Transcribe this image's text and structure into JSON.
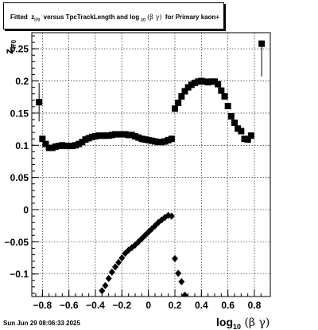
{
  "title": {
    "prefix": "Fitted",
    "z": "z",
    "z_sub": "I70",
    "middle": "versus TpcTrackLength and log",
    "log_sub": "10",
    "greek": "(β γ)",
    "suffix": "for Primary kaon+"
  },
  "date_stamp": "Sun Jun 29 08:06:33 2025",
  "chart_data": {
    "type": "scatter",
    "title": "Fitted z_I70 versus TpcTrackLength and log10(β γ) for Primary kaon+",
    "xlabel": "log10(β γ)",
    "ylabel": "z_I70",
    "xlim": [
      -0.88,
      0.92
    ],
    "ylim": [
      -0.135,
      0.275
    ],
    "grid": true,
    "x_ticks": [
      -0.8,
      -0.6,
      -0.4,
      -0.2,
      0,
      0.2,
      0.4,
      0.6,
      0.8
    ],
    "x_tick_labels": [
      "−0.8",
      "−0.6",
      "−0.4",
      "−0.2",
      "0",
      "0.2",
      "0.4",
      "0.6",
      "0.8"
    ],
    "y_ticks": [
      -0.1,
      -0.05,
      0,
      0.05,
      0.1,
      0.15,
      0.2,
      0.25
    ],
    "y_tick_labels": [
      "−0.1",
      "−0.05",
      "0",
      "0.05",
      "0.1",
      "0.15",
      "0.2",
      "0.25"
    ],
    "series": [
      {
        "marker": "square",
        "points": [
          {
            "x": -0.825,
            "y": 0.167,
            "err": 0.03
          },
          {
            "x": -0.8,
            "y": 0.11
          },
          {
            "x": -0.775,
            "y": 0.102
          },
          {
            "x": -0.75,
            "y": 0.096
          },
          {
            "x": -0.725,
            "y": 0.096
          },
          {
            "x": -0.7,
            "y": 0.098
          },
          {
            "x": -0.675,
            "y": 0.099
          },
          {
            "x": -0.65,
            "y": 0.1
          },
          {
            "x": -0.625,
            "y": 0.099
          },
          {
            "x": -0.6,
            "y": 0.099
          },
          {
            "x": -0.575,
            "y": 0.099
          },
          {
            "x": -0.55,
            "y": 0.1
          },
          {
            "x": -0.525,
            "y": 0.102
          },
          {
            "x": -0.5,
            "y": 0.105
          },
          {
            "x": -0.475,
            "y": 0.109
          },
          {
            "x": -0.45,
            "y": 0.111
          },
          {
            "x": -0.425,
            "y": 0.113
          },
          {
            "x": -0.4,
            "y": 0.114
          },
          {
            "x": -0.375,
            "y": 0.115
          },
          {
            "x": -0.35,
            "y": 0.115
          },
          {
            "x": -0.325,
            "y": 0.115
          },
          {
            "x": -0.3,
            "y": 0.115
          },
          {
            "x": -0.275,
            "y": 0.116
          },
          {
            "x": -0.25,
            "y": 0.117
          },
          {
            "x": -0.225,
            "y": 0.117
          },
          {
            "x": -0.2,
            "y": 0.117
          },
          {
            "x": -0.175,
            "y": 0.117
          },
          {
            "x": -0.15,
            "y": 0.116
          },
          {
            "x": -0.125,
            "y": 0.116
          },
          {
            "x": -0.1,
            "y": 0.114
          },
          {
            "x": -0.075,
            "y": 0.112
          },
          {
            "x": -0.05,
            "y": 0.11
          },
          {
            "x": -0.025,
            "y": 0.109
          },
          {
            "x": 0.0,
            "y": 0.108
          },
          {
            "x": 0.025,
            "y": 0.107
          },
          {
            "x": 0.05,
            "y": 0.106
          },
          {
            "x": 0.075,
            "y": 0.105
          },
          {
            "x": 0.1,
            "y": 0.105
          },
          {
            "x": 0.125,
            "y": 0.106
          },
          {
            "x": 0.15,
            "y": 0.108
          },
          {
            "x": 0.175,
            "y": 0.11
          },
          {
            "x": 0.2,
            "y": 0.157
          },
          {
            "x": 0.225,
            "y": 0.166
          },
          {
            "x": 0.25,
            "y": 0.176
          },
          {
            "x": 0.275,
            "y": 0.184
          },
          {
            "x": 0.3,
            "y": 0.19
          },
          {
            "x": 0.325,
            "y": 0.194
          },
          {
            "x": 0.35,
            "y": 0.197
          },
          {
            "x": 0.375,
            "y": 0.199
          },
          {
            "x": 0.4,
            "y": 0.2
          },
          {
            "x": 0.425,
            "y": 0.199
          },
          {
            "x": 0.45,
            "y": 0.198
          },
          {
            "x": 0.475,
            "y": 0.199
          },
          {
            "x": 0.5,
            "y": 0.199
          },
          {
            "x": 0.525,
            "y": 0.195
          },
          {
            "x": 0.55,
            "y": 0.185
          },
          {
            "x": 0.575,
            "y": 0.176
          },
          {
            "x": 0.6,
            "y": 0.161
          },
          {
            "x": 0.625,
            "y": 0.145
          },
          {
            "x": 0.65,
            "y": 0.135
          },
          {
            "x": 0.675,
            "y": 0.126
          },
          {
            "x": 0.7,
            "y": 0.122
          },
          {
            "x": 0.725,
            "y": 0.11
          },
          {
            "x": 0.75,
            "y": 0.109
          },
          {
            "x": 0.775,
            "y": 0.115
          },
          {
            "x": 0.855,
            "y": 0.258,
            "err_low": 0.207,
            "err_high": 0.26
          }
        ]
      },
      {
        "marker": "diamond",
        "points": [
          {
            "x": -0.35,
            "y": -0.126
          },
          {
            "x": -0.325,
            "y": -0.118
          },
          {
            "x": -0.3,
            "y": -0.107
          },
          {
            "x": -0.275,
            "y": -0.097
          },
          {
            "x": -0.25,
            "y": -0.089
          },
          {
            "x": -0.225,
            "y": -0.082
          },
          {
            "x": -0.2,
            "y": -0.075
          },
          {
            "x": -0.175,
            "y": -0.068
          },
          {
            "x": -0.15,
            "y": -0.063
          },
          {
            "x": -0.125,
            "y": -0.059
          },
          {
            "x": -0.1,
            "y": -0.055
          },
          {
            "x": -0.075,
            "y": -0.05
          },
          {
            "x": -0.05,
            "y": -0.045
          },
          {
            "x": -0.025,
            "y": -0.04
          },
          {
            "x": 0.0,
            "y": -0.035
          },
          {
            "x": 0.025,
            "y": -0.03
          },
          {
            "x": 0.05,
            "y": -0.025
          },
          {
            "x": 0.075,
            "y": -0.02
          },
          {
            "x": 0.1,
            "y": -0.016
          },
          {
            "x": 0.125,
            "y": -0.012
          },
          {
            "x": 0.15,
            "y": -0.009
          },
          {
            "x": 0.175,
            "y": -0.01
          },
          {
            "x": 0.2,
            "y": -0.076
          },
          {
            "x": 0.225,
            "y": -0.099
          },
          {
            "x": 0.25,
            "y": -0.112
          },
          {
            "x": 0.275,
            "y": -0.133
          }
        ]
      }
    ]
  }
}
